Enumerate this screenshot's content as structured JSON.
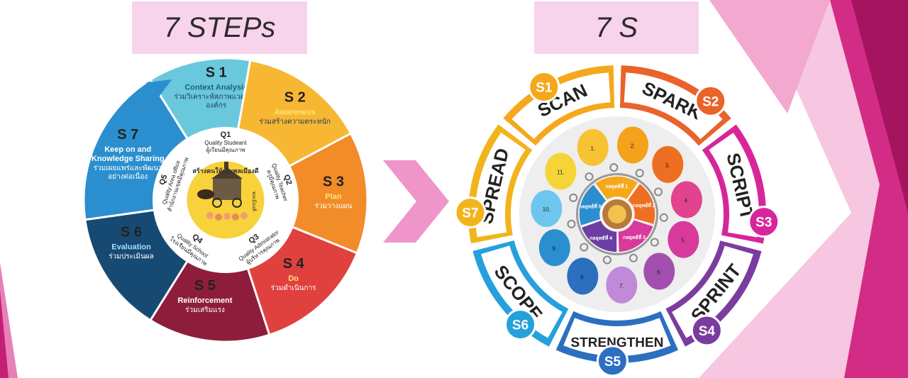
{
  "banners": {
    "left": "7 STEPs",
    "right": "7 S"
  },
  "steps": [
    {
      "id": "S 1",
      "title": "Context Analysis",
      "desc": [
        "ร่วมวิเคราะห์สภาพแวดล้อม",
        "องค์กร"
      ],
      "color": "#69c8dc",
      "title_color": "#1f5f8a"
    },
    {
      "id": "S 2",
      "title": "Awareness",
      "desc": [
        "ร่วมสร้างความตระหนัก"
      ],
      "color": "#f7b733",
      "title_color": "#ffe27a"
    },
    {
      "id": "S 3",
      "title": "Plan",
      "desc": [
        "ร่วมวางแผน"
      ],
      "color": "#f28c28",
      "title_color": "#ffe27a"
    },
    {
      "id": "S 4",
      "title": "Do",
      "desc": [
        "ร่วมดำเนินการ"
      ],
      "color": "#e0413f",
      "title_color": "#ffe27a"
    },
    {
      "id": "S 5",
      "title": "Reinforcement",
      "desc": [
        "ร่วมเสริมแรง"
      ],
      "color": "#8e1d3c",
      "title_color": "#ffffff"
    },
    {
      "id": "S 6",
      "title": "Evaluation",
      "desc": [
        "ร่วมประเมินผล"
      ],
      "color": "#174a72",
      "title_color": "#9fe0ff"
    },
    {
      "id": "S 7",
      "title": "Keep on and Knowledge Sharing",
      "desc": [
        "ร่วมเผยแพร่และพัฒนา",
        "อย่างต่อเนื่อง"
      ],
      "color": "#2b8fcf",
      "title_color": "#ffffff"
    }
  ],
  "quality": [
    {
      "id": "Q1",
      "lines": [
        "Quality Studeant",
        "ผู้เรียนมีคุณภาพ"
      ]
    },
    {
      "id": "Q2",
      "lines": [
        "Quality Teacher",
        "ครูมีคุณภาพ"
      ]
    },
    {
      "id": "Q3",
      "lines": [
        "Quality Admistrator",
        "ผู้บริหารคุณภาพ"
      ]
    },
    {
      "id": "Q4",
      "lines": [
        "Quality School",
        "โรงเรียนมีคุณภาพ"
      ]
    },
    {
      "id": "Q5",
      "lines": [
        "Quality Area office",
        "สำนักงานเขตมีคุณภาพ"
      ]
    }
  ],
  "center": {
    "caption": "สร้างคนให้เป็นพลเมืองดี",
    "side_label": "พลเมืองดี"
  },
  "seven_s": [
    {
      "badge": "S1",
      "word": "SCAN",
      "color": "#f5a81c"
    },
    {
      "badge": "S2",
      "word": "SPARK",
      "color": "#e9632a"
    },
    {
      "badge": "S3",
      "word": "SCRIPT",
      "color": "#d6269a"
    },
    {
      "badge": "S4",
      "word": "SPRINT",
      "color": "#7b3ca0"
    },
    {
      "badge": "S5",
      "word": "STRENGTHEN",
      "color": "#2c6fbf"
    },
    {
      "badge": "S6",
      "word": "SCOPE",
      "color": "#25a0db"
    },
    {
      "badge": "S7",
      "word": "SPREAD",
      "color": "#f2b41c"
    }
  ],
  "groups": [
    {
      "label": "กลยุทธ์ที่ 1",
      "color": "#f5a81c"
    },
    {
      "label": "กลยุทธ์ที่ 2",
      "color": "#ef6f22"
    },
    {
      "label": "กลยุทธ์ที่ 3",
      "color": "#d83a9c"
    },
    {
      "label": "กลยุทธ์ที่ 4",
      "color": "#6c3ea3"
    },
    {
      "label": "กลยุทธ์ที่ 5",
      "color": "#2b8fcf"
    }
  ],
  "bubbles": [
    "1",
    "2",
    "3",
    "4",
    "5",
    "6",
    "7",
    "8",
    "9",
    "10",
    "11"
  ],
  "colors": {
    "arrow": "#ef95c9",
    "banner": "#f7d3ec",
    "pink_dark": "#c51f74",
    "pink_light": "#f4b5d8"
  }
}
